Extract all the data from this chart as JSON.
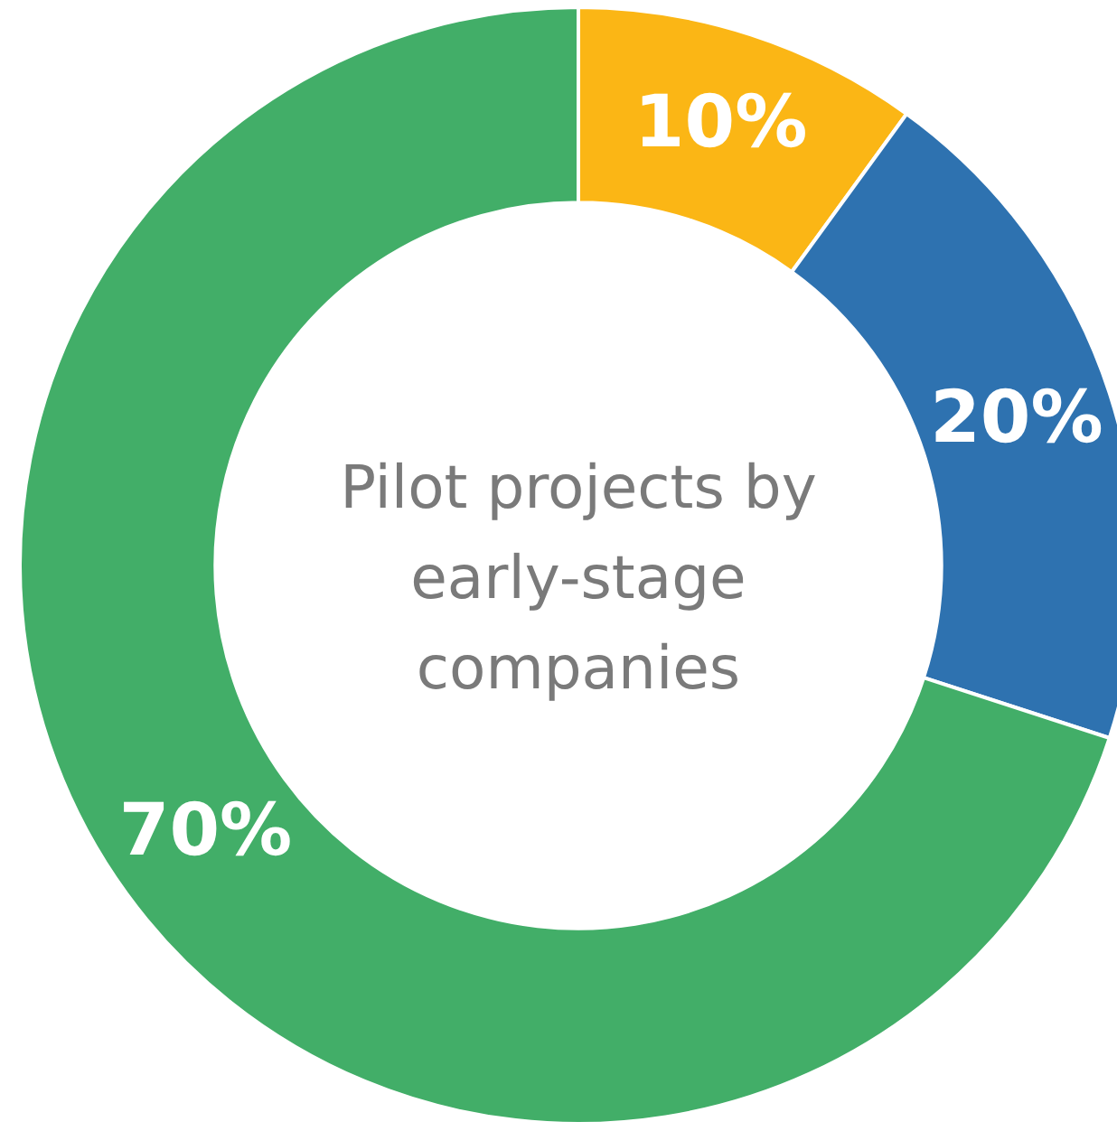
{
  "chart_data": {
    "type": "donut",
    "title": "Pilot projects by early-stage companies",
    "categories": [
      null,
      null,
      null
    ],
    "values": [
      10,
      20,
      70
    ],
    "colors": [
      "#fbb615",
      "#2e72b0",
      "#42ae68"
    ],
    "value_labels": [
      "10%",
      "20%",
      "70%"
    ],
    "legend": false
  }
}
